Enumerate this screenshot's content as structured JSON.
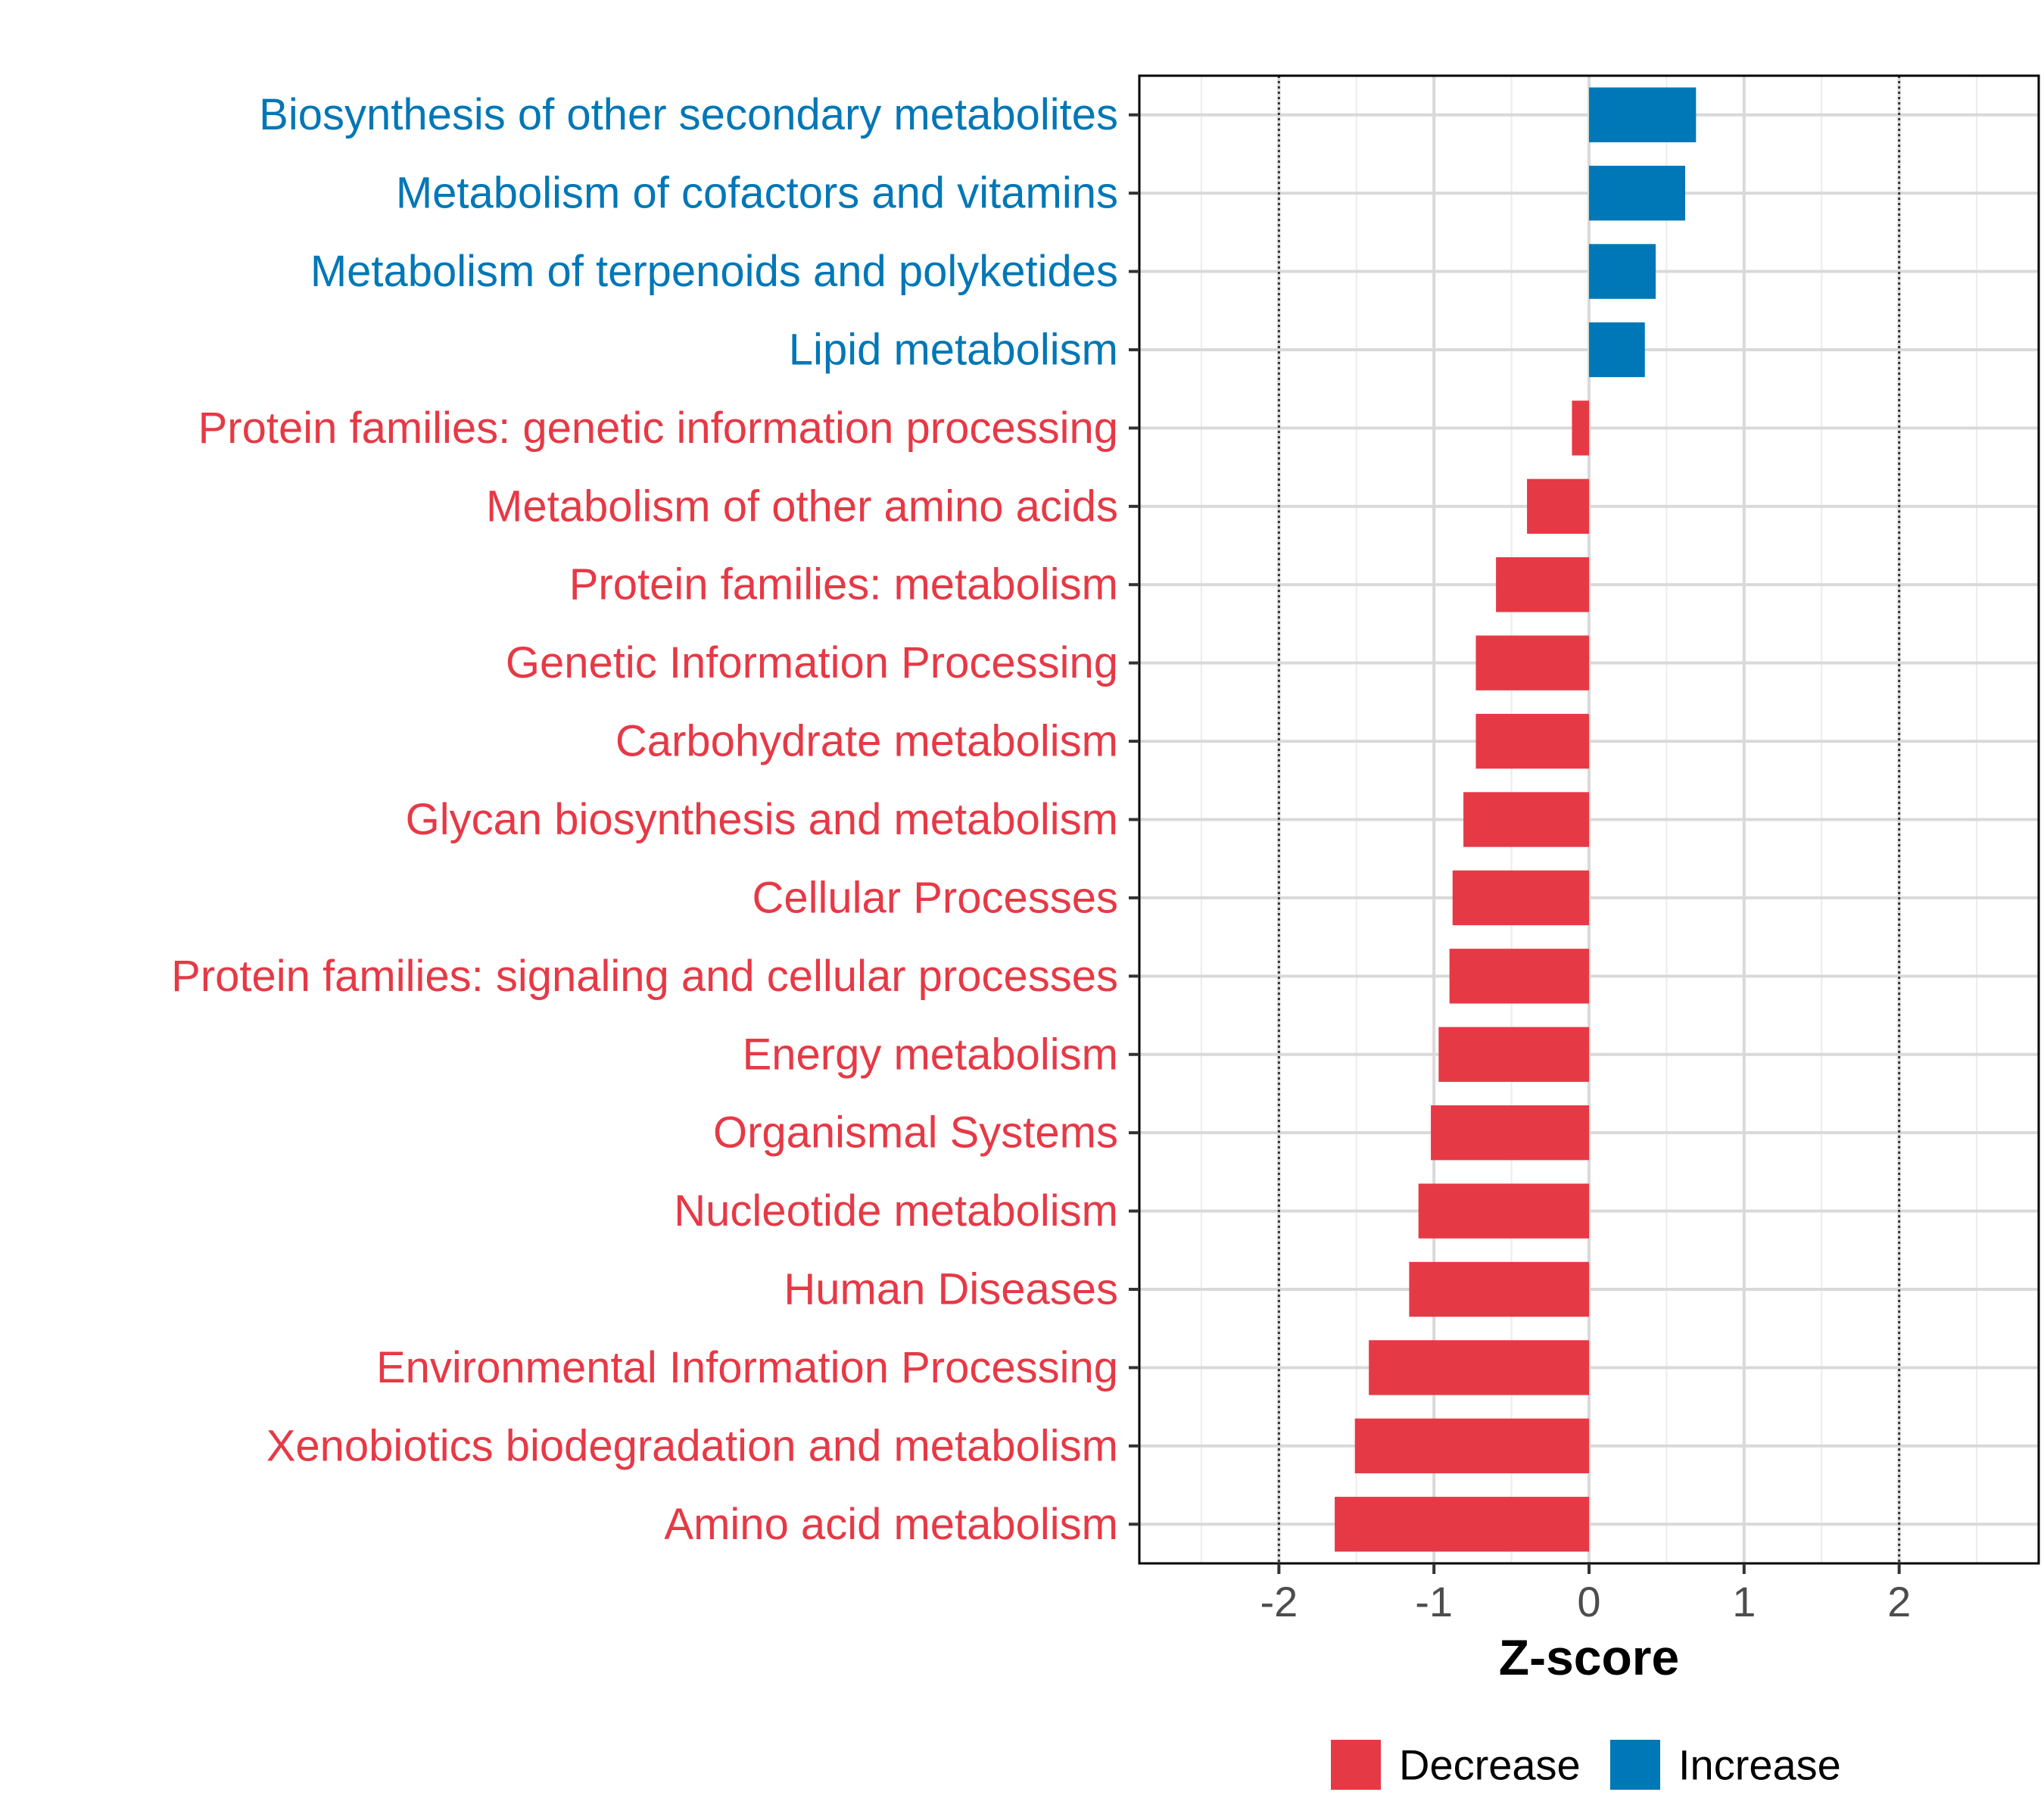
{
  "chart_data": {
    "type": "bar",
    "orientation": "horizontal",
    "title": "",
    "xlabel": "Z-score",
    "ylabel": "",
    "xlim": [
      -2.9,
      2.9
    ],
    "xticks": [
      -2,
      -1,
      0,
      1,
      2
    ],
    "xtick_labels": [
      "-2",
      "-1",
      "0",
      "1",
      "2"
    ],
    "reference_lines": [
      -2,
      2
    ],
    "grid": true,
    "legend_position": "bottom",
    "categories": [
      "Biosynthesis of other secondary metabolites",
      "Metabolism of cofactors and vitamins",
      "Metabolism of terpenoids and polyketides",
      "Lipid metabolism",
      "Protein families: genetic information processing",
      "Metabolism of other amino acids",
      "Protein families: metabolism",
      "Genetic Information Processing",
      "Carbohydrate metabolism",
      "Glycan biosynthesis and metabolism",
      "Cellular Processes",
      "Protein families: signaling and cellular processes",
      "Energy metabolism",
      "Organismal Systems",
      "Nucleotide metabolism",
      "Human Diseases",
      "Environmental Information Processing",
      "Xenobiotics biodegradation and metabolism",
      "Amino acid metabolism"
    ],
    "values": [
      0.69,
      0.62,
      0.43,
      0.36,
      -0.11,
      -0.4,
      -0.6,
      -0.73,
      -0.73,
      -0.81,
      -0.88,
      -0.9,
      -0.97,
      -1.02,
      -1.1,
      -1.16,
      -1.42,
      -1.51,
      -1.64
    ],
    "groups": [
      "Increase",
      "Increase",
      "Increase",
      "Increase",
      "Decrease",
      "Decrease",
      "Decrease",
      "Decrease",
      "Decrease",
      "Decrease",
      "Decrease",
      "Decrease",
      "Decrease",
      "Decrease",
      "Decrease",
      "Decrease",
      "Decrease",
      "Decrease",
      "Decrease"
    ],
    "legend": [
      {
        "name": "Decrease",
        "color": "#e63946"
      },
      {
        "name": "Increase",
        "color": "#0077b6"
      }
    ]
  }
}
